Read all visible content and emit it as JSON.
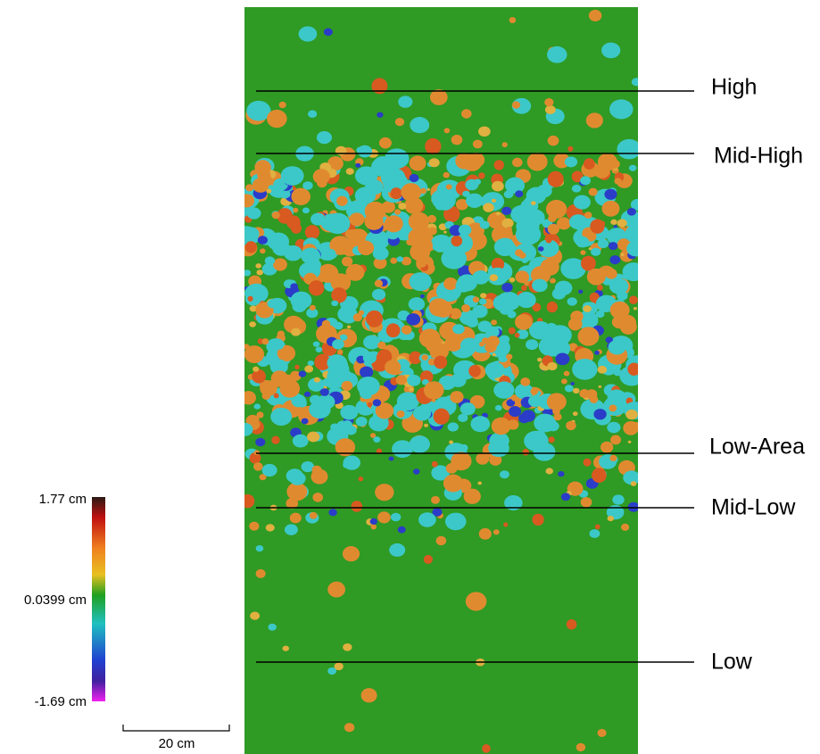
{
  "profile_lines": [
    {
      "label": "High"
    },
    {
      "label": "Mid-High"
    },
    {
      "label": "Low-Area"
    },
    {
      "label": "Mid-Low"
    },
    {
      "label": "Low"
    }
  ],
  "color_scale": {
    "max": "1.77 cm",
    "mid": "0.0399 cm",
    "min": "-1.69 cm"
  },
  "scale_bar": {
    "label": "20 cm"
  }
}
